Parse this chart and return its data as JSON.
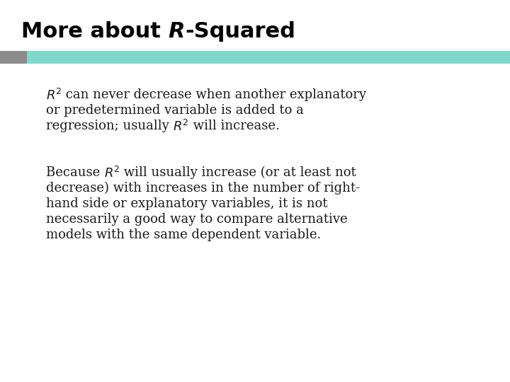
{
  "bg_color": "#ffffff",
  "bar_gray_color": "#8c8c8c",
  "bar_teal_color": "#7dd9cc",
  "title_fontsize": 22,
  "body_fontsize": 13,
  "text_color": "#1a1a1a",
  "para1_line1": " can never decrease when another explanatory",
  "para1_line2": "or predetermined variable is added to a",
  "para1_line3": "regression; usually ",
  "para1_line3_end": " will increase.",
  "para2_line1": " will usually increase (or at least not",
  "para2_line2": "decrease) with increases in the number of right-",
  "para2_line3": "hand side or explanatory variables, it is not",
  "para2_line4": "necessarily a good way to compare alternative",
  "para2_line5": "models with the same dependent variable."
}
